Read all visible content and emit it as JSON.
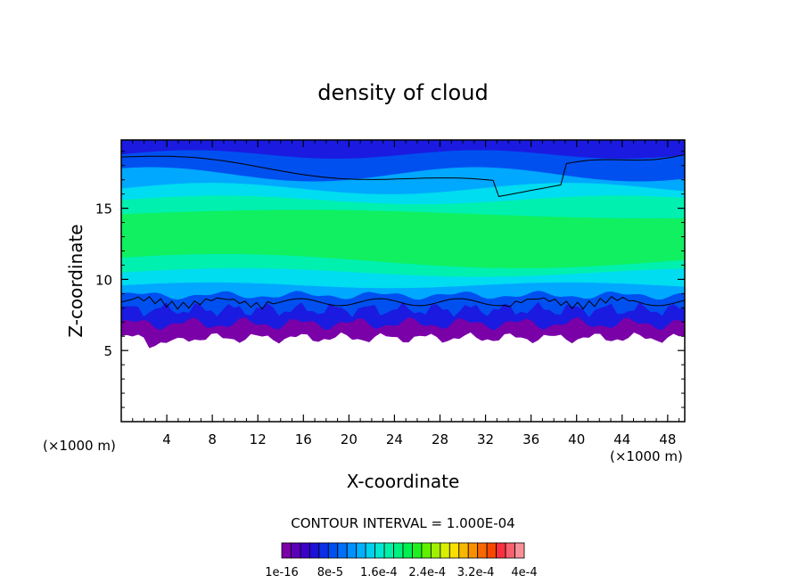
{
  "chart_data": {
    "type": "heatmap",
    "title": "density of cloud",
    "xlabel": "X-coordinate",
    "ylabel": "Z-coordinate",
    "x_unit_left": "(×1000 m)",
    "x_unit_right": "(×1000 m)",
    "xlim": [
      0,
      49.5
    ],
    "ylim": [
      0,
      19.8
    ],
    "x_ticks": [
      4,
      8,
      12,
      16,
      20,
      24,
      28,
      32,
      36,
      40,
      44,
      48
    ],
    "x_tick_labels": [
      "4",
      "8",
      "12",
      "16",
      "20",
      "24",
      "28",
      "32",
      "36",
      "40",
      "44",
      "48"
    ],
    "y_ticks": [
      5,
      10,
      15
    ],
    "y_tick_labels": [
      "5",
      "10",
      "15"
    ],
    "contour_interval_text": "CONTOUR INTERVAL = 1.000E-04",
    "colorbar": {
      "colors": [
        "#7a00a8",
        "#5a00b8",
        "#3a00c8",
        "#1e10d8",
        "#0a30e8",
        "#0050f0",
        "#0070f8",
        "#0090ff",
        "#00b0ff",
        "#00d0f0",
        "#00e8d0",
        "#00f0a8",
        "#00f080",
        "#00f050",
        "#20f020",
        "#60f000",
        "#a0f000",
        "#d8f000",
        "#f8e000",
        "#f8b800",
        "#f89000",
        "#f86800",
        "#f84800",
        "#f83040",
        "#f86070",
        "#f89098"
      ],
      "labels": [
        "1e-16",
        "8e-5",
        "1.6e-4",
        "2.4e-4",
        "3.2e-4",
        "4e-4"
      ]
    },
    "bands_note_colors": {
      "purple": "#7a00a8",
      "deep_blue": "#1a1ae0",
      "blue": "#0050f0",
      "sky": "#00a8ff",
      "cyan": "#00dcf0",
      "aqua": "#00f0b0",
      "green": "#10f060"
    }
  }
}
